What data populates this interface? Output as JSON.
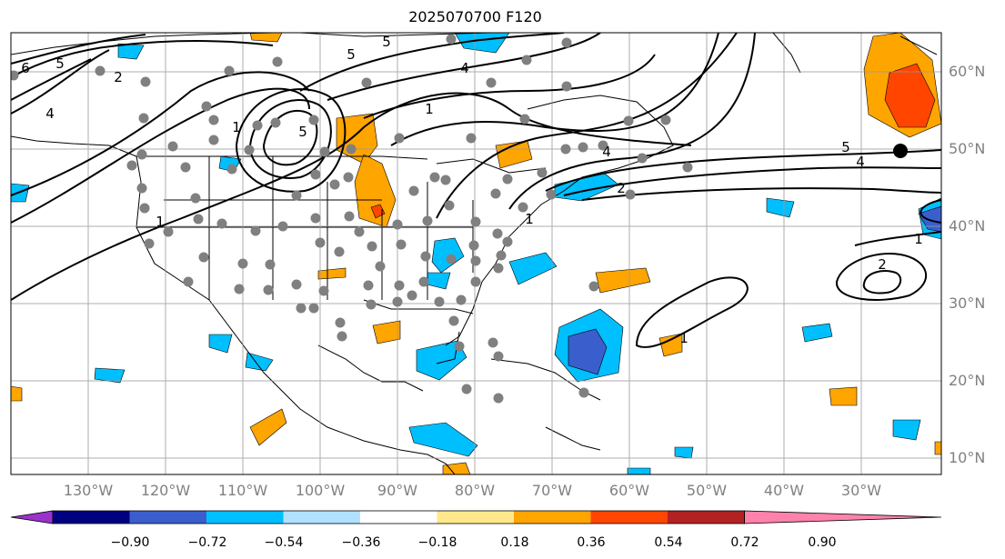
{
  "title": "2025070700 F120",
  "lat_labels": [
    "60°N",
    "50°N",
    "40°N",
    "30°N",
    "20°N",
    "10°N"
  ],
  "lon_labels": [
    "130°W",
    "120°W",
    "110°W",
    "100°W",
    "90°W",
    "80°W",
    "70°W",
    "60°W",
    "50°W",
    "40°W",
    "30°W"
  ],
  "colorbar": {
    "ticks": [
      "−0.90",
      "−0.72",
      "−0.54",
      "−0.36",
      "−0.18",
      "0.18",
      "0.36",
      "0.54",
      "0.72",
      "0.90"
    ],
    "colors": [
      "#9933cc",
      "#000080",
      "#3a5fcd",
      "#00bfff",
      "#b0e2ff",
      "#ffffff",
      "#ffe88a",
      "#ffa500",
      "#ff4500",
      "#b22222",
      "#ff82ab"
    ]
  },
  "contour_labels": [
    "6",
    "5",
    "5",
    "4",
    "4",
    "4",
    "5",
    "5",
    "5",
    "4",
    "2",
    "1",
    "1",
    "1",
    "1",
    "1",
    "2",
    "2",
    "1"
  ],
  "colors": {
    "contour": "#000000",
    "station": "#808080",
    "grid": "#999999"
  }
}
